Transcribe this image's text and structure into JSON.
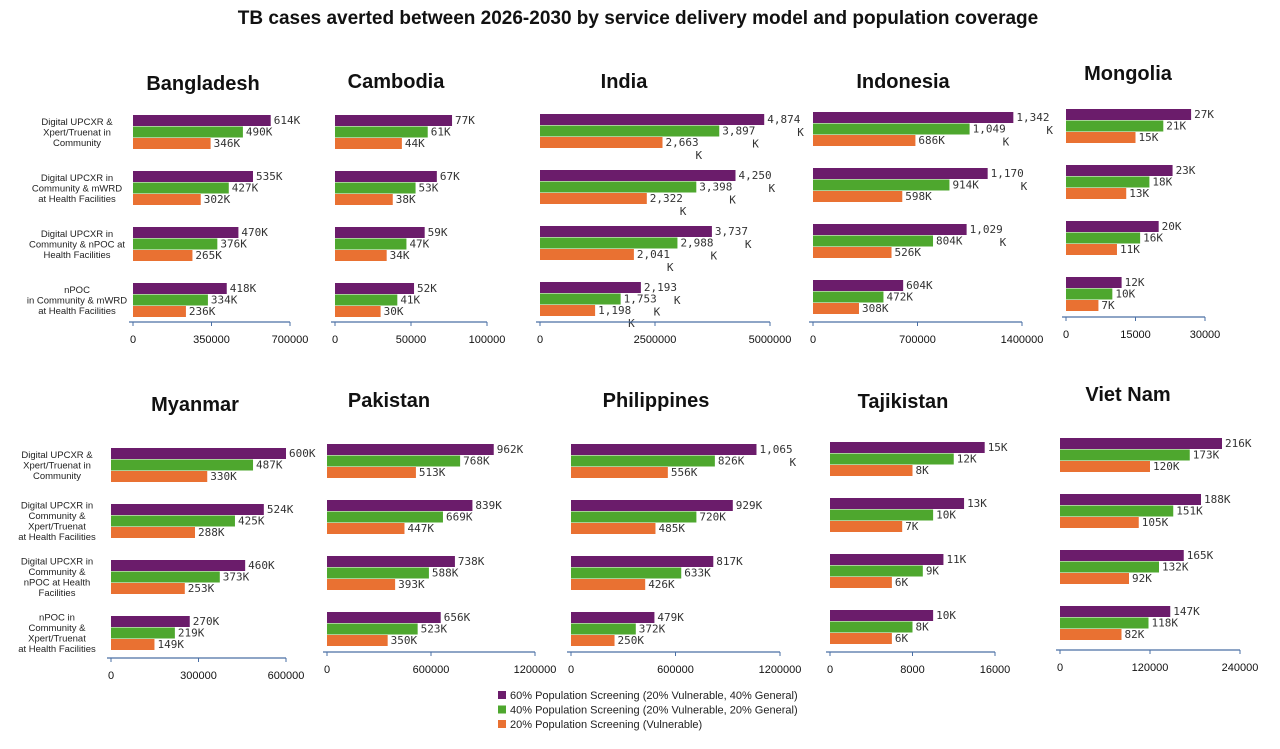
{
  "title": "TB cases averted between 2026-2030 by service delivery model and population coverage",
  "legend": [
    {
      "label": "60% Population Screening (20% Vulnerable, 40% General)",
      "color": "#6b1c6b"
    },
    {
      "label": "40% Population Screening (20% Vulnerable, 20% General)",
      "color": "#4ea72e"
    },
    {
      "label": "20% Population Screening (Vulnerable)",
      "color": "#e97132"
    }
  ],
  "chart_data": [
    {
      "type": "bar",
      "title": "Bangladesh",
      "categories": [
        "Digital UPCXR & Xpert/Truenat in Community",
        "Digital UPCXR in Community & mWRD at Health Facilities",
        "Digital UPCXR in Community & nPOC at Health Facilities",
        "nPOC in Community & mWRD at Health Facilities"
      ],
      "series": [
        {
          "name": "60% Population Screening (20% Vulnerable, 40% General)",
          "values": [
            614000,
            535000,
            470000,
            418000
          ],
          "labels": [
            "614K",
            "535K",
            "470K",
            "418K"
          ]
        },
        {
          "name": "40% Population Screening (20% Vulnerable, 20% General)",
          "values": [
            490000,
            427000,
            376000,
            334000
          ],
          "labels": [
            "490K",
            "427K",
            "376K",
            "334K"
          ]
        },
        {
          "name": "20% Population Screening (Vulnerable)",
          "values": [
            346000,
            302000,
            265000,
            236000
          ],
          "labels": [
            "346K",
            "302K",
            "265K",
            "236K"
          ]
        }
      ],
      "xlim": [
        0,
        700000
      ],
      "xticks": [
        "0",
        "350000",
        "700000"
      ]
    },
    {
      "type": "bar",
      "title": "Cambodia",
      "series": [
        {
          "values": [
            77000,
            67000,
            59000,
            52000
          ],
          "labels": [
            "77K",
            "67K",
            "59K",
            "52K"
          ]
        },
        {
          "values": [
            61000,
            53000,
            47000,
            41000
          ],
          "labels": [
            "61K",
            "53K",
            "47K",
            "41K"
          ]
        },
        {
          "values": [
            44000,
            38000,
            34000,
            30000
          ],
          "labels": [
            "44K",
            "38K",
            "34K",
            "30K"
          ]
        }
      ],
      "xlim": [
        0,
        100000
      ],
      "xticks": [
        "0",
        "50000",
        "100000"
      ]
    },
    {
      "type": "bar",
      "title": "India",
      "series": [
        {
          "values": [
            4874000,
            4250000,
            3737000,
            2193000
          ],
          "labels": [
            "4,874 K",
            "4,250 K",
            "3,737 K",
            "2,193 K"
          ]
        },
        {
          "values": [
            3897000,
            3398000,
            2988000,
            1753000
          ],
          "labels": [
            "3,897 K",
            "3,398 K",
            "2,988 K",
            "1,753 K"
          ]
        },
        {
          "values": [
            2663000,
            2322000,
            2041000,
            1198000
          ],
          "labels": [
            "2,663 K",
            "2,322 K",
            "2,041 K",
            "1,198 K"
          ]
        }
      ],
      "xlim": [
        0,
        5000000
      ],
      "xticks": [
        "0",
        "2500000",
        "5000000"
      ]
    },
    {
      "type": "bar",
      "title": "Indonesia",
      "series": [
        {
          "values": [
            1342000,
            1170000,
            1029000,
            604000
          ],
          "labels": [
            "1,342 K",
            "1,170 K",
            "1,029 K",
            "604K"
          ]
        },
        {
          "values": [
            1049000,
            914000,
            804000,
            472000
          ],
          "labels": [
            "1,049 K",
            "914K",
            "804K",
            "472K"
          ]
        },
        {
          "values": [
            686000,
            598000,
            526000,
            308000
          ],
          "labels": [
            "686K",
            "598K",
            "526K",
            "308K"
          ]
        }
      ],
      "xlim": [
        0,
        1400000
      ],
      "xticks": [
        "0",
        "700000",
        "1400000"
      ]
    },
    {
      "type": "bar",
      "title": "Mongolia",
      "series": [
        {
          "values": [
            27000,
            23000,
            20000,
            12000
          ],
          "labels": [
            "27K",
            "23K",
            "20K",
            "12K"
          ]
        },
        {
          "values": [
            21000,
            18000,
            16000,
            10000
          ],
          "labels": [
            "21K",
            "18K",
            "16K",
            "10K"
          ]
        },
        {
          "values": [
            15000,
            13000,
            11000,
            7000
          ],
          "labels": [
            "15K",
            "13K",
            "11K",
            "7K"
          ]
        }
      ],
      "xlim": [
        0,
        30000
      ],
      "xticks": [
        "0",
        "15000",
        "30000"
      ]
    },
    {
      "type": "bar",
      "title": "Myanmar",
      "categories": [
        "Digital UPCXR & Xpert/Truenat in Community",
        "Digital UPCXR in Community & Xpert/Truenat at Health Facilities",
        "Digital UPCXR in Community & nPOC at Health Facilities",
        "nPOC in Community & Xpert/Truenat at Health Facilities"
      ],
      "series": [
        {
          "values": [
            600000,
            524000,
            460000,
            270000
          ],
          "labels": [
            "600K",
            "524K",
            "460K",
            "270K"
          ]
        },
        {
          "values": [
            487000,
            425000,
            373000,
            219000
          ],
          "labels": [
            "487K",
            "425K",
            "373K",
            "219K"
          ]
        },
        {
          "values": [
            330000,
            288000,
            253000,
            149000
          ],
          "labels": [
            "330K",
            "288K",
            "253K",
            "149K"
          ]
        }
      ],
      "xlim": [
        0,
        600000
      ],
      "xticks": [
        "0",
        "300000",
        "600000"
      ]
    },
    {
      "type": "bar",
      "title": "Pakistan",
      "series": [
        {
          "values": [
            962000,
            839000,
            738000,
            656000
          ],
          "labels": [
            "962K",
            "839K",
            "738K",
            "656K"
          ]
        },
        {
          "values": [
            768000,
            669000,
            588000,
            523000
          ],
          "labels": [
            "768K",
            "669K",
            "588K",
            "523K"
          ]
        },
        {
          "values": [
            513000,
            447000,
            393000,
            350000
          ],
          "labels": [
            "513K",
            "447K",
            "393K",
            "350K"
          ]
        }
      ],
      "xlim": [
        0,
        1200000
      ],
      "xticks": [
        "0",
        "600000",
        "1200000"
      ]
    },
    {
      "type": "bar",
      "title": "Philippines",
      "series": [
        {
          "values": [
            1065000,
            929000,
            817000,
            479000
          ],
          "labels": [
            "1,065 K",
            "929K",
            "817K",
            "479K"
          ]
        },
        {
          "values": [
            826000,
            720000,
            633000,
            372000
          ],
          "labels": [
            "826K",
            "720K",
            "633K",
            "372K"
          ]
        },
        {
          "values": [
            556000,
            485000,
            426000,
            250000
          ],
          "labels": [
            "556K",
            "485K",
            "426K",
            "250K"
          ]
        }
      ],
      "xlim": [
        0,
        1200000
      ],
      "xticks": [
        "0",
        "600000",
        "1200000"
      ]
    },
    {
      "type": "bar",
      "title": "Tajikistan",
      "series": [
        {
          "values": [
            15000,
            13000,
            11000,
            10000
          ],
          "labels": [
            "15K",
            "13K",
            "11K",
            "10K"
          ]
        },
        {
          "values": [
            12000,
            10000,
            9000,
            8000
          ],
          "labels": [
            "12K",
            "10K",
            "9K",
            "8K"
          ]
        },
        {
          "values": [
            8000,
            7000,
            6000,
            6000
          ],
          "labels": [
            "8K",
            "7K",
            "6K",
            "6K"
          ]
        }
      ],
      "xlim": [
        0,
        16000
      ],
      "xticks": [
        "0",
        "8000",
        "16000"
      ]
    },
    {
      "type": "bar",
      "title": "Viet Nam",
      "series": [
        {
          "values": [
            216000,
            188000,
            165000,
            147000
          ],
          "labels": [
            "216K",
            "188K",
            "165K",
            "147K"
          ]
        },
        {
          "values": [
            173000,
            151000,
            132000,
            118000
          ],
          "labels": [
            "173K",
            "151K",
            "132K",
            "118K"
          ]
        },
        {
          "values": [
            120000,
            105000,
            92000,
            82000
          ],
          "labels": [
            "120K",
            "105K",
            "92K",
            "82K"
          ]
        }
      ],
      "xlim": [
        0,
        240000
      ],
      "xticks": [
        "0",
        "120000",
        "240000"
      ]
    }
  ]
}
